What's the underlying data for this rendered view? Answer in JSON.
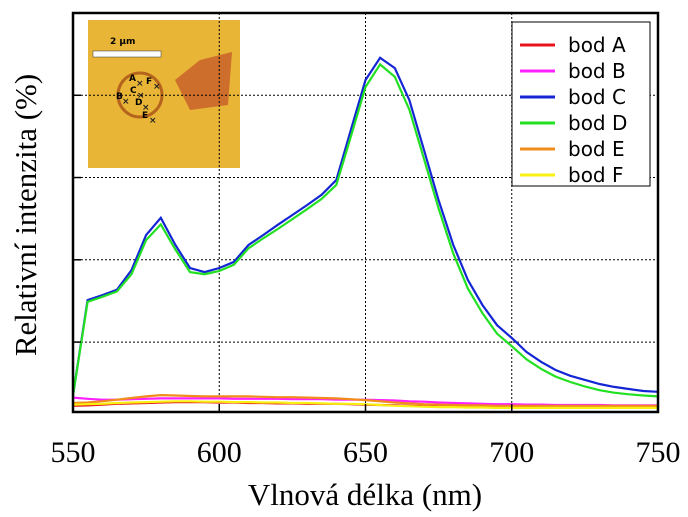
{
  "chart_data": {
    "type": "line",
    "xlabel": "Vlnová délka (nm)",
    "ylabel": "Relativní intenzita (%)",
    "x": [
      550,
      555,
      560,
      565,
      570,
      575,
      580,
      585,
      590,
      595,
      600,
      605,
      610,
      615,
      620,
      625,
      630,
      635,
      640,
      645,
      650,
      655,
      660,
      665,
      670,
      675,
      680,
      685,
      690,
      695,
      700,
      705,
      710,
      715,
      720,
      725,
      730,
      735,
      740,
      745,
      750
    ],
    "xlim": [
      550,
      750
    ],
    "xticks": [
      550,
      600,
      650,
      700,
      750
    ],
    "ylim": [
      3,
      100
    ],
    "yticks": [
      20,
      40,
      60,
      80
    ],
    "grid": true,
    "legend": "upper right",
    "series": [
      {
        "name": "bod A",
        "color": "#e8141c",
        "values": [
          4.5,
          4.6,
          4.8,
          5.0,
          5.1,
          5.2,
          5.3,
          5.4,
          5.4,
          5.4,
          5.3,
          5.3,
          5.2,
          5.2,
          5.1,
          5.1,
          5.0,
          5.0,
          5.0,
          4.9,
          4.8,
          4.7,
          4.6,
          4.5,
          4.4,
          4.3,
          4.3,
          4.2,
          4.2,
          4.1,
          4.1,
          4.1,
          4.0,
          4.0,
          4.0,
          4.0,
          4.0,
          4.0,
          4.0,
          4.0,
          4.0
        ]
      },
      {
        "name": "bod B",
        "color": "#ff20ff",
        "values": [
          6.5,
          6.2,
          6.0,
          6.0,
          6.1,
          6.2,
          6.3,
          6.3,
          6.3,
          6.3,
          6.3,
          6.2,
          6.2,
          6.2,
          6.2,
          6.1,
          6.1,
          6.1,
          6.0,
          6.0,
          6.0,
          5.9,
          5.8,
          5.6,
          5.5,
          5.3,
          5.2,
          5.1,
          5.0,
          4.9,
          4.9,
          4.8,
          4.8,
          4.7,
          4.7,
          4.7,
          4.7,
          4.6,
          4.6,
          4.6,
          4.6
        ]
      },
      {
        "name": "bod C",
        "color": "#1426d4",
        "values": [
          7.1,
          30.2,
          31.4,
          32.7,
          37.5,
          46.0,
          50.2,
          43.6,
          38.0,
          37.0,
          38.0,
          39.5,
          43.6,
          46.0,
          48.5,
          50.9,
          53.3,
          55.8,
          59.4,
          71.6,
          83.7,
          89.1,
          86.6,
          78.8,
          66.7,
          54.5,
          43.6,
          35.1,
          29.0,
          24.1,
          21.0,
          17.6,
          15.2,
          13.2,
          11.8,
          10.8,
          9.8,
          9.1,
          8.6,
          8.1,
          7.9
        ]
      },
      {
        "name": "bod D",
        "color": "#22e022",
        "values": [
          7.0,
          29.8,
          31.0,
          32.3,
          36.5,
          44.8,
          48.6,
          42.5,
          37.0,
          36.5,
          37.3,
          38.8,
          42.8,
          45.2,
          47.5,
          49.9,
          52.3,
          54.8,
          58.2,
          70.0,
          82.0,
          87.5,
          84.5,
          76.5,
          64.5,
          52.5,
          41.5,
          33.0,
          27.0,
          22.0,
          19.0,
          15.8,
          13.5,
          11.6,
          10.3,
          9.2,
          8.3,
          7.7,
          7.3,
          7.0,
          6.8
        ]
      },
      {
        "name": "bod E",
        "color": "#f08c1c",
        "values": [
          5.2,
          5.3,
          5.6,
          6.0,
          6.4,
          6.8,
          7.1,
          7.0,
          6.9,
          6.8,
          6.8,
          6.8,
          6.8,
          6.7,
          6.6,
          6.6,
          6.5,
          6.4,
          6.3,
          6.1,
          5.9,
          5.6,
          5.3,
          5.1,
          4.9,
          4.8,
          4.7,
          4.6,
          4.6,
          4.5,
          4.5,
          4.5,
          4.5,
          4.5,
          4.5,
          4.5,
          4.5,
          4.5,
          4.5,
          4.5,
          4.5
        ]
      },
      {
        "name": "bod F",
        "color": "#f8f010",
        "values": [
          4.8,
          4.9,
          5.0,
          5.2,
          5.3,
          5.4,
          5.5,
          5.6,
          5.6,
          5.5,
          5.5,
          5.4,
          5.4,
          5.3,
          5.3,
          5.2,
          5.2,
          5.1,
          5.0,
          5.0,
          4.9,
          4.7,
          4.5,
          4.4,
          4.3,
          4.2,
          4.2,
          4.1,
          4.1,
          4.0,
          4.0,
          4.0,
          4.0,
          4.0,
          4.0,
          4.0,
          4.0,
          4.0,
          4.0,
          4.0,
          4.0
        ]
      }
    ],
    "inset": {
      "scale_label": "2 μm",
      "points": [
        "A",
        "B",
        "C",
        "D",
        "E",
        "F"
      ]
    }
  }
}
